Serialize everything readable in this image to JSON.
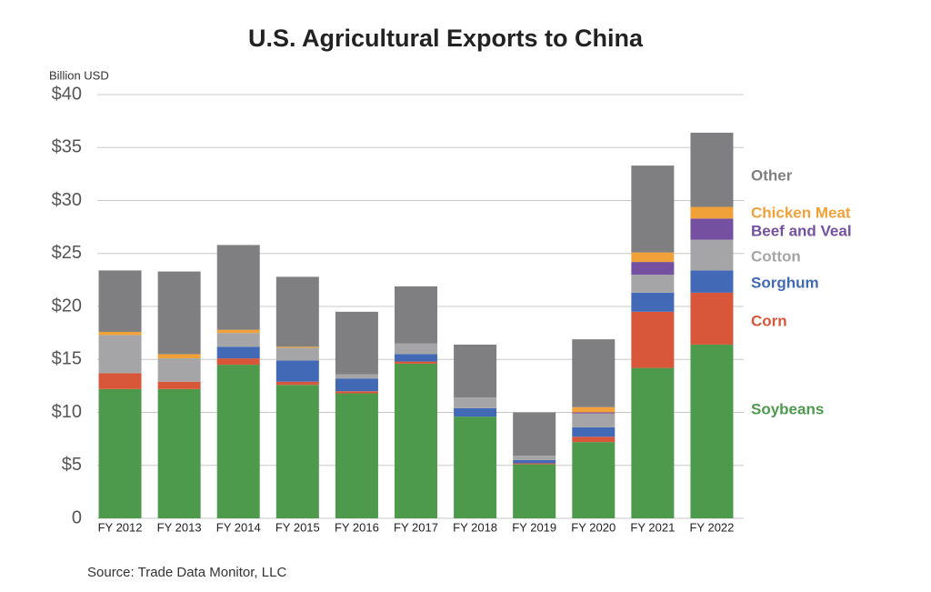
{
  "chart_data": {
    "type": "stacked_bar",
    "title": "U.S. Agricultural Exports to China",
    "y_label": "Billion USD",
    "source": "Source: Trade Data Monitor, LLC",
    "categories": [
      "FY 2012",
      "FY 2013",
      "FY 2014",
      "FY 2015",
      "FY 2016",
      "FY 2017",
      "FY 2018",
      "FY 2019",
      "FY 2020",
      "FY 2021",
      "FY 2022"
    ],
    "series": [
      {
        "name": "Soybeans",
        "color": "#4e9a4c",
        "values": [
          12.2,
          12.2,
          14.5,
          12.6,
          11.8,
          14.6,
          9.6,
          5.1,
          7.2,
          14.2,
          16.4
        ]
      },
      {
        "name": "Corn",
        "color": "#d8573a",
        "values": [
          1.5,
          0.7,
          0.6,
          0.3,
          0.2,
          0.2,
          0,
          0.1,
          0.5,
          5.3,
          4.9
        ]
      },
      {
        "name": "Sorghum",
        "color": "#4169b5",
        "values": [
          0,
          0,
          1.1,
          2.0,
          1.2,
          0.7,
          0.8,
          0.3,
          0.9,
          1.8,
          2.1
        ]
      },
      {
        "name": "Cotton",
        "color": "#a5a5a7",
        "values": [
          3.6,
          2.2,
          1.3,
          1.2,
          0.4,
          1.0,
          1.0,
          0.4,
          1.3,
          1.7,
          2.9
        ]
      },
      {
        "name": "Beef and Veal",
        "color": "#7550a0",
        "values": [
          0,
          0,
          0,
          0,
          0,
          0,
          0,
          0,
          0.1,
          1.2,
          2.0
        ]
      },
      {
        "name": "Chicken Meat",
        "color": "#f0a13a",
        "values": [
          0.3,
          0.4,
          0.3,
          0.1,
          0,
          0,
          0,
          0,
          0.5,
          0.9,
          1.1
        ]
      },
      {
        "name": "Other",
        "color": "#7f7f82",
        "values": [
          5.8,
          7.8,
          8.0,
          6.6,
          5.9,
          5.4,
          5.0,
          4.1,
          6.4,
          8.2,
          7.0
        ]
      }
    ],
    "ylim": [
      0,
      40
    ],
    "yticks": [
      0,
      {
        "value": 5,
        "label": "$5"
      },
      {
        "value": 10,
        "label": "$10"
      },
      {
        "value": 15,
        "label": "$15"
      },
      {
        "value": 20,
        "label": "$20"
      },
      {
        "value": 25,
        "label": "$25"
      },
      {
        "value": 30,
        "label": "$30"
      },
      {
        "value": 35,
        "label": "$35"
      },
      {
        "value": 40,
        "label": "$40"
      }
    ],
    "grid": true
  }
}
